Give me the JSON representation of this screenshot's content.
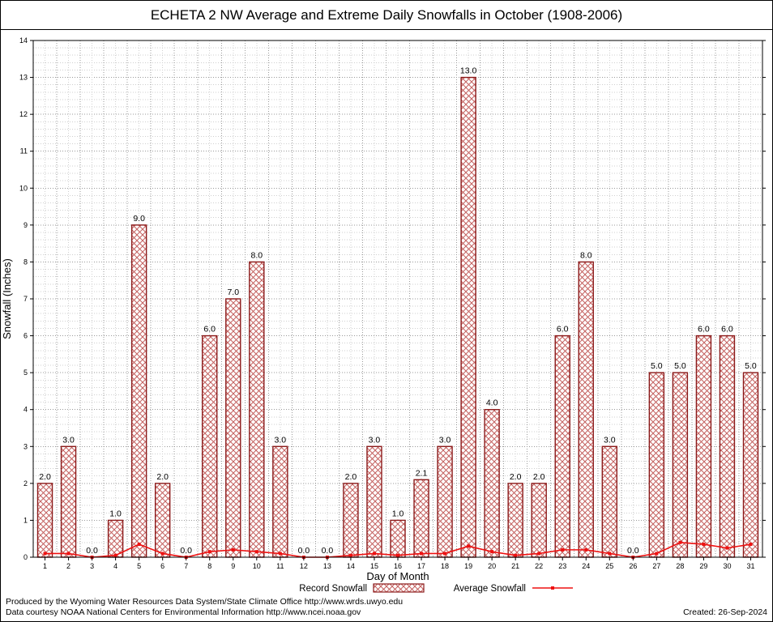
{
  "title": "ECHETA 2 NW Average and Extreme Daily Snowfalls in October (1908-2006)",
  "chart_data": {
    "type": "bar",
    "title": "ECHETA 2 NW Average and Extreme Daily Snowfalls in October (1908-2006)",
    "xlabel": "Day of Month",
    "ylabel": "Snowfall (Inches)",
    "ylim": [
      0,
      14
    ],
    "grid": true,
    "legend_position": "bottom",
    "x": [
      1,
      2,
      3,
      4,
      5,
      6,
      7,
      8,
      9,
      10,
      11,
      12,
      13,
      14,
      15,
      16,
      17,
      18,
      19,
      20,
      21,
      22,
      23,
      24,
      25,
      26,
      27,
      28,
      29,
      30,
      31
    ],
    "series": [
      {
        "name": "Record Snowfall",
        "type": "bar",
        "values": [
          2.0,
          3.0,
          0.0,
          1.0,
          9.0,
          2.0,
          0.0,
          6.0,
          7.0,
          8.0,
          3.0,
          0.0,
          0.0,
          2.0,
          3.0,
          1.0,
          2.1,
          3.0,
          13.0,
          4.0,
          2.0,
          2.0,
          6.0,
          8.0,
          3.0,
          0.0,
          5.0,
          5.0,
          6.0,
          6.0,
          5.0
        ]
      },
      {
        "name": "Average Snowfall",
        "type": "line",
        "values": [
          0.1,
          0.1,
          0.0,
          0.05,
          0.35,
          0.1,
          0.0,
          0.15,
          0.2,
          0.15,
          0.1,
          0.0,
          0.0,
          0.05,
          0.1,
          0.05,
          0.1,
          0.1,
          0.3,
          0.15,
          0.05,
          0.1,
          0.2,
          0.2,
          0.1,
          0.0,
          0.1,
          0.4,
          0.35,
          0.25,
          0.35
        ]
      }
    ],
    "colors": {
      "bar_edge": "#8b1a1a",
      "bar_hatch": "#c4615f",
      "line": "#ee1111",
      "grid_minor": "#cfcfcf",
      "grid_major": "#9a9a9a",
      "axis": "#000000"
    }
  },
  "footer": {
    "line1": "Produced by the Wyoming Water Resources Data System/State Climate Office http://www.wrds.uwyo.edu",
    "line2": "Data courtesy NOAA National Centers for Environmental Information http://www.ncei.noaa.gov",
    "created": "Created: 26-Sep-2024"
  }
}
